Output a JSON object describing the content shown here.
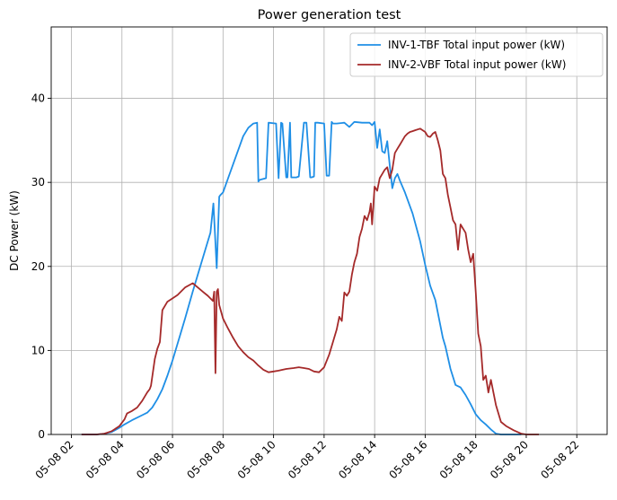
{
  "chart_data": {
    "type": "line",
    "title": "Power generation test",
    "xlabel": "",
    "ylabel": "DC Power (kW)",
    "xlim": [
      1.2,
      23.2
    ],
    "ylim": [
      0,
      48.5
    ],
    "grid": true,
    "legend_position": "top-right",
    "x_ticks": [
      2,
      4,
      6,
      8,
      10,
      12,
      14,
      16,
      18,
      20,
      22
    ],
    "x_tick_labels": [
      "05-08 02",
      "05-08 04",
      "05-08 06",
      "05-08 08",
      "05-08 10",
      "05-08 12",
      "05-08 14",
      "05-08 16",
      "05-08 18",
      "05-08 20",
      "05-08 22"
    ],
    "y_ticks": [
      0,
      10,
      20,
      30,
      40
    ],
    "y_tick_labels": [
      "0",
      "10",
      "20",
      "30",
      "40"
    ],
    "series": [
      {
        "name": "INV-1-TBF Total input power (kW)",
        "color": "#1f8fe6",
        "x": [
          2.4,
          3.0,
          3.3,
          3.6,
          3.9,
          4.1,
          4.4,
          4.8,
          5.0,
          5.2,
          5.4,
          5.6,
          5.8,
          6.0,
          6.2,
          6.5,
          6.8,
          7.0,
          7.3,
          7.5,
          7.62,
          7.68,
          7.75,
          7.8,
          7.85,
          7.9,
          8.0,
          8.2,
          8.5,
          8.8,
          9.0,
          9.2,
          9.35,
          9.4,
          9.45,
          9.7,
          9.8,
          10.1,
          10.2,
          10.3,
          10.35,
          10.5,
          10.55,
          10.65,
          10.7,
          10.9,
          11.0,
          11.2,
          11.3,
          11.45,
          11.5,
          11.6,
          11.65,
          11.75,
          12.0,
          12.1,
          12.2,
          12.3,
          12.35,
          12.5,
          12.8,
          13.0,
          13.2,
          13.5,
          13.8,
          13.9,
          14.0,
          14.1,
          14.2,
          14.3,
          14.4,
          14.5,
          14.6,
          14.7,
          14.8,
          14.9,
          15.0,
          15.2,
          15.5,
          15.8,
          16.0,
          16.2,
          16.4,
          16.5,
          16.7,
          16.8,
          17.0,
          17.2,
          17.4,
          17.6,
          17.8,
          18.0,
          18.2,
          18.4,
          18.6,
          18.8,
          19.0,
          19.2,
          19.5,
          19.8
        ],
        "values": [
          0,
          0,
          0.1,
          0.3,
          0.8,
          1.2,
          1.7,
          2.3,
          2.6,
          3.2,
          4.2,
          5.4,
          7.0,
          8.8,
          10.8,
          13.8,
          17.0,
          19.0,
          22.0,
          24.0,
          27.5,
          24.0,
          19.8,
          24.0,
          28.3,
          28.5,
          28.8,
          30.5,
          33.0,
          35.5,
          36.5,
          37.0,
          37.1,
          30.1,
          30.3,
          30.5,
          37.1,
          37.0,
          30.5,
          37.1,
          37.0,
          30.6,
          30.6,
          37.1,
          30.6,
          30.6,
          30.7,
          37.1,
          37.1,
          30.6,
          30.6,
          30.7,
          37.1,
          37.1,
          37.0,
          30.8,
          30.8,
          37.2,
          37.0,
          37.0,
          37.1,
          36.6,
          37.2,
          37.1,
          37.1,
          36.8,
          37.2,
          34.1,
          36.3,
          33.7,
          33.5,
          34.9,
          32.0,
          29.3,
          30.5,
          31.0,
          30.2,
          28.8,
          26.3,
          23.0,
          20.2,
          17.7,
          16.0,
          14.5,
          11.5,
          10.5,
          7.8,
          5.9,
          5.6,
          4.7,
          3.6,
          2.4,
          1.7,
          1.2,
          0.6,
          0.1,
          0,
          0,
          0,
          0
        ]
      },
      {
        "name": "INV-2-VBF Total input power (kW)",
        "color": "#a52a2a",
        "x": [
          2.4,
          3.0,
          3.3,
          3.6,
          3.9,
          4.1,
          4.2,
          4.4,
          4.6,
          4.8,
          5.0,
          5.1,
          5.15,
          5.3,
          5.4,
          5.5,
          5.6,
          5.8,
          6.0,
          6.2,
          6.4,
          6.5,
          6.8,
          7.0,
          7.2,
          7.4,
          7.6,
          7.65,
          7.7,
          7.75,
          7.8,
          7.85,
          8.0,
          8.2,
          8.4,
          8.6,
          8.8,
          9.0,
          9.2,
          9.4,
          9.6,
          9.8,
          10.0,
          10.2,
          10.5,
          10.8,
          11.0,
          11.2,
          11.4,
          11.6,
          11.8,
          12.0,
          12.2,
          12.4,
          12.5,
          12.6,
          12.7,
          12.8,
          12.9,
          13.0,
          13.1,
          13.2,
          13.3,
          13.4,
          13.5,
          13.6,
          13.7,
          13.8,
          13.85,
          13.9,
          14.0,
          14.1,
          14.2,
          14.3,
          14.4,
          14.5,
          14.6,
          14.7,
          14.8,
          14.9,
          15.0,
          15.1,
          15.2,
          15.3,
          15.4,
          15.5,
          15.6,
          15.8,
          16.0,
          16.1,
          16.2,
          16.3,
          16.4,
          16.5,
          16.6,
          16.7,
          16.8,
          16.9,
          17.0,
          17.1,
          17.2,
          17.3,
          17.4,
          17.5,
          17.6,
          17.7,
          17.8,
          17.9,
          18.0,
          18.1,
          18.2,
          18.3,
          18.4,
          18.5,
          18.6,
          18.7,
          18.8,
          18.9,
          19.0,
          19.2,
          19.5,
          19.8,
          20.0,
          20.3,
          20.5
        ],
        "values": [
          0,
          0,
          0.1,
          0.4,
          1.0,
          1.8,
          2.5,
          2.8,
          3.2,
          4.0,
          5.0,
          5.4,
          5.8,
          9.0,
          10.2,
          11.0,
          14.8,
          15.8,
          16.2,
          16.6,
          17.2,
          17.5,
          18.0,
          17.5,
          17.0,
          16.5,
          15.9,
          17.0,
          7.3,
          17.0,
          17.3,
          15.4,
          13.8,
          12.6,
          11.5,
          10.5,
          9.8,
          9.2,
          8.8,
          8.2,
          7.7,
          7.4,
          7.5,
          7.6,
          7.8,
          7.9,
          8.0,
          7.9,
          7.8,
          7.5,
          7.4,
          8.0,
          9.5,
          11.5,
          12.5,
          14.0,
          13.5,
          16.9,
          16.5,
          17.0,
          19.0,
          20.5,
          21.5,
          23.5,
          24.5,
          26.0,
          25.5,
          26.5,
          27.5,
          25.0,
          29.5,
          29.0,
          30.5,
          31.0,
          31.5,
          31.8,
          30.5,
          31.5,
          33.5,
          34.0,
          34.5,
          35.0,
          35.5,
          35.8,
          36.0,
          36.1,
          36.2,
          36.4,
          36.0,
          35.5,
          35.4,
          35.8,
          36.0,
          35.0,
          33.8,
          31.0,
          30.5,
          28.5,
          27.0,
          25.5,
          25.0,
          22.0,
          25.0,
          24.5,
          24.0,
          22.0,
          20.5,
          21.5,
          17.0,
          12.0,
          10.5,
          6.5,
          7.0,
          5.0,
          6.5,
          5.0,
          3.5,
          2.5,
          1.5,
          1.0,
          0.5,
          0.1,
          0,
          0,
          0
        ]
      }
    ]
  }
}
